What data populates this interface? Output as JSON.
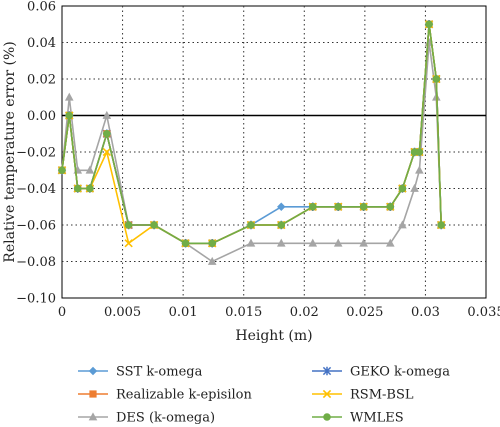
{
  "chart_data": {
    "type": "line",
    "xlabel": "Height (m)",
    "ylabel": "Relative temperature error (%)",
    "xlim": [
      0,
      0.035
    ],
    "ylim": [
      -0.1,
      0.06
    ],
    "xticks": [
      0,
      0.005,
      0.01,
      0.015,
      0.02,
      0.025,
      0.03,
      0.035
    ],
    "xtick_labels": [
      "0",
      "0.005",
      "0.01",
      "0.015",
      "0.02",
      "0.025",
      "0.03",
      "0.035"
    ],
    "yticks": [
      0.06,
      0.04,
      0.02,
      0.0,
      -0.02,
      -0.04,
      -0.06,
      -0.08,
      -0.1
    ],
    "ytick_labels": [
      "0.06",
      "0.04",
      "0.02",
      "0.00",
      "−0.02",
      "−0.04",
      "−0.06",
      "−0.08",
      "−0.10"
    ],
    "grid": true,
    "legend_position": "below",
    "series": [
      {
        "name": "SST k-omega",
        "color": "#5b9bd5",
        "marker": "diamond",
        "x": [
          0.0,
          0.0006,
          0.0013,
          0.0023,
          0.0037,
          0.0055,
          0.0076,
          0.0102,
          0.0124,
          0.0156,
          0.0181,
          0.0207,
          0.0228,
          0.0249,
          0.0271,
          0.0281,
          0.0291,
          0.0295,
          0.0303,
          0.0309,
          0.0313
        ],
        "y": [
          -0.03,
          0.0,
          -0.04,
          -0.04,
          -0.01,
          -0.06,
          -0.06,
          -0.07,
          -0.07,
          -0.06,
          -0.05,
          -0.05,
          -0.05,
          -0.05,
          -0.05,
          -0.04,
          -0.02,
          -0.02,
          0.05,
          0.02,
          -0.06
        ]
      },
      {
        "name": "Realizable k-episilon",
        "color": "#ed7d31",
        "marker": "square",
        "x": [
          0.0,
          0.0006,
          0.0013,
          0.0023,
          0.0037,
          0.0055,
          0.0076,
          0.0102,
          0.0124,
          0.0156,
          0.0181,
          0.0207,
          0.0228,
          0.0249,
          0.0271,
          0.0281,
          0.0291,
          0.0295,
          0.0303,
          0.0309,
          0.0313
        ],
        "y": [
          -0.03,
          0.0,
          -0.04,
          -0.04,
          -0.01,
          -0.06,
          -0.06,
          -0.07,
          -0.07,
          -0.06,
          -0.06,
          -0.05,
          -0.05,
          -0.05,
          -0.05,
          -0.04,
          -0.02,
          -0.02,
          0.05,
          0.02,
          -0.06
        ]
      },
      {
        "name": "DES (k-omega)",
        "color": "#a5a5a5",
        "marker": "triangle",
        "x": [
          0.0,
          0.0006,
          0.0013,
          0.0023,
          0.0037,
          0.0055,
          0.0076,
          0.0102,
          0.0124,
          0.0156,
          0.0181,
          0.0207,
          0.0228,
          0.0249,
          0.0271,
          0.0281,
          0.0291,
          0.0295,
          0.0303,
          0.0309,
          0.0313
        ],
        "y": [
          -0.03,
          0.01,
          -0.03,
          -0.03,
          0.0,
          -0.06,
          -0.06,
          -0.07,
          -0.08,
          -0.07,
          -0.07,
          -0.07,
          -0.07,
          -0.07,
          -0.07,
          -0.06,
          -0.04,
          -0.03,
          0.04,
          0.01,
          -0.06
        ]
      },
      {
        "name": "GEKO k-omega",
        "color": "#4472c4",
        "marker": "star",
        "x": [
          0.0,
          0.0006,
          0.0013,
          0.0023,
          0.0037,
          0.0055,
          0.0076,
          0.0102,
          0.0124,
          0.0156,
          0.0181,
          0.0207,
          0.0228,
          0.0249,
          0.0271,
          0.0281,
          0.0291,
          0.0295,
          0.0303,
          0.0309,
          0.0313
        ],
        "y": [
          -0.03,
          0.0,
          -0.04,
          -0.04,
          -0.01,
          -0.06,
          -0.06,
          -0.07,
          -0.07,
          -0.06,
          -0.06,
          -0.05,
          -0.05,
          -0.05,
          -0.05,
          -0.04,
          -0.02,
          -0.02,
          0.05,
          0.02,
          -0.06
        ]
      },
      {
        "name": "RSM-BSL",
        "color": "#ffc000",
        "marker": "x",
        "x": [
          0.0,
          0.0006,
          0.0013,
          0.0023,
          0.0037,
          0.0055,
          0.0076,
          0.0102,
          0.0124,
          0.0156,
          0.0181,
          0.0207,
          0.0228,
          0.0249,
          0.0271,
          0.0281,
          0.0291,
          0.0295,
          0.0303,
          0.0309,
          0.0313
        ],
        "y": [
          -0.03,
          0.0,
          -0.04,
          -0.04,
          -0.02,
          -0.07,
          -0.06,
          -0.07,
          -0.07,
          -0.06,
          -0.06,
          -0.05,
          -0.05,
          -0.05,
          -0.05,
          -0.04,
          -0.02,
          -0.02,
          0.05,
          0.02,
          -0.06
        ]
      },
      {
        "name": "WMLES",
        "color": "#70ad47",
        "marker": "circle",
        "x": [
          0.0,
          0.0006,
          0.0013,
          0.0023,
          0.0037,
          0.0055,
          0.0076,
          0.0102,
          0.0124,
          0.0156,
          0.0181,
          0.0207,
          0.0228,
          0.0249,
          0.0271,
          0.0281,
          0.0291,
          0.0295,
          0.0303,
          0.0309,
          0.0313
        ],
        "y": [
          -0.03,
          0.0,
          -0.04,
          -0.04,
          -0.01,
          -0.06,
          -0.06,
          -0.07,
          -0.07,
          -0.06,
          -0.06,
          -0.05,
          -0.05,
          -0.05,
          -0.05,
          -0.04,
          -0.02,
          -0.02,
          0.05,
          0.02,
          -0.06
        ]
      }
    ]
  }
}
